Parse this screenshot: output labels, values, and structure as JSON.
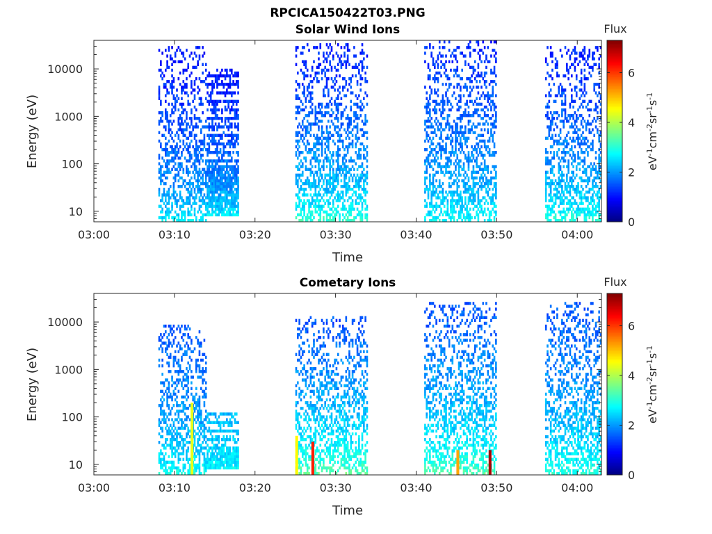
{
  "figure": {
    "title": "RPCICA150422T03.PNG"
  },
  "chart_data": [
    {
      "type": "heatmap",
      "title": "Solar Wind Ions",
      "xlabel": "Time",
      "ylabel": "Energy (eV)",
      "y_scale": "log",
      "xlim": [
        "03:00",
        "04:03"
      ],
      "ylim": [
        6,
        40000
      ],
      "x_ticks": [
        "03:00",
        "03:10",
        "03:20",
        "03:30",
        "03:40",
        "03:50",
        "04:00"
      ],
      "y_ticks": [
        "10",
        "100",
        "1000",
        "10000"
      ],
      "colorbar": {
        "label": "Flux",
        "units": "eV-1cm-2sr-1s-1",
        "range": [
          0,
          7.3
        ],
        "ticks": [
          "0",
          "2",
          "4",
          "6"
        ],
        "colormap": "jet"
      },
      "data_blocks": [
        {
          "t_start": "03:08",
          "t_end": "03:14",
          "e_min": 6,
          "e_max": 30000,
          "low_energy_flux": 2.8,
          "high_energy_flux": 1.0
        },
        {
          "t_start": "03:14",
          "t_end": "03:18",
          "e_min": 8,
          "e_max": 10000,
          "low_energy_flux": 2.8,
          "high_energy_flux": 1.0
        },
        {
          "t_start": "03:25",
          "t_end": "03:34",
          "e_min": 6,
          "e_max": 35000,
          "low_energy_flux": 3.3,
          "high_energy_flux": 1.1
        },
        {
          "t_start": "03:41",
          "t_end": "03:50",
          "e_min": 6,
          "e_max": 38000,
          "low_energy_flux": 3.0,
          "high_energy_flux": 1.2
        },
        {
          "t_start": "03:56",
          "t_end": "04:03",
          "e_min": 6,
          "e_max": 30000,
          "low_energy_flux": 3.2,
          "high_energy_flux": 1.1
        }
      ]
    },
    {
      "type": "heatmap",
      "title": "Cometary Ions",
      "xlabel": "Time",
      "ylabel": "Energy (eV)",
      "y_scale": "log",
      "xlim": [
        "03:00",
        "04:03"
      ],
      "ylim": [
        6,
        40000
      ],
      "x_ticks": [
        "03:00",
        "03:10",
        "03:20",
        "03:30",
        "03:40",
        "03:50",
        "04:00"
      ],
      "y_ticks": [
        "10",
        "100",
        "1000",
        "10000"
      ],
      "colorbar": {
        "label": "Flux",
        "units": "eV-1cm-2sr-1s-1",
        "range": [
          0,
          7.3
        ],
        "ticks": [
          "0",
          "2",
          "4",
          "6"
        ],
        "colormap": "jet"
      },
      "data_blocks": [
        {
          "t_start": "03:08",
          "t_end": "03:14",
          "e_min": 6,
          "e_max": 9000,
          "low_energy_flux": 3.0,
          "high_energy_flux": 1.5
        },
        {
          "t_start": "03:14",
          "t_end": "03:18",
          "e_min": 8,
          "e_max": 130,
          "low_energy_flux": 2.8,
          "high_energy_flux": 2.2
        },
        {
          "t_start": "03:25",
          "t_end": "03:34",
          "e_min": 6,
          "e_max": 13000,
          "low_energy_flux": 3.6,
          "high_energy_flux": 1.5
        },
        {
          "t_start": "03:41",
          "t_end": "03:50",
          "e_min": 6,
          "e_max": 28000,
          "low_energy_flux": 3.5,
          "high_energy_flux": 1.5
        },
        {
          "t_start": "03:56",
          "t_end": "04:03",
          "e_min": 6,
          "e_max": 28000,
          "low_energy_flux": 3.2,
          "high_energy_flux": 1.5
        }
      ],
      "hotspots": [
        {
          "time": "03:12",
          "e_min": 6,
          "e_max": 200,
          "flux": 4.4
        },
        {
          "time": "03:25",
          "e_min": 6,
          "e_max": 40,
          "flux": 4.6
        },
        {
          "time": "03:27",
          "e_min": 6,
          "e_max": 30,
          "flux": 6.2
        },
        {
          "time": "03:45",
          "e_min": 6,
          "e_max": 20,
          "flux": 5.2
        },
        {
          "time": "03:49",
          "e_min": 6,
          "e_max": 20,
          "flux": 7.0
        }
      ]
    }
  ]
}
